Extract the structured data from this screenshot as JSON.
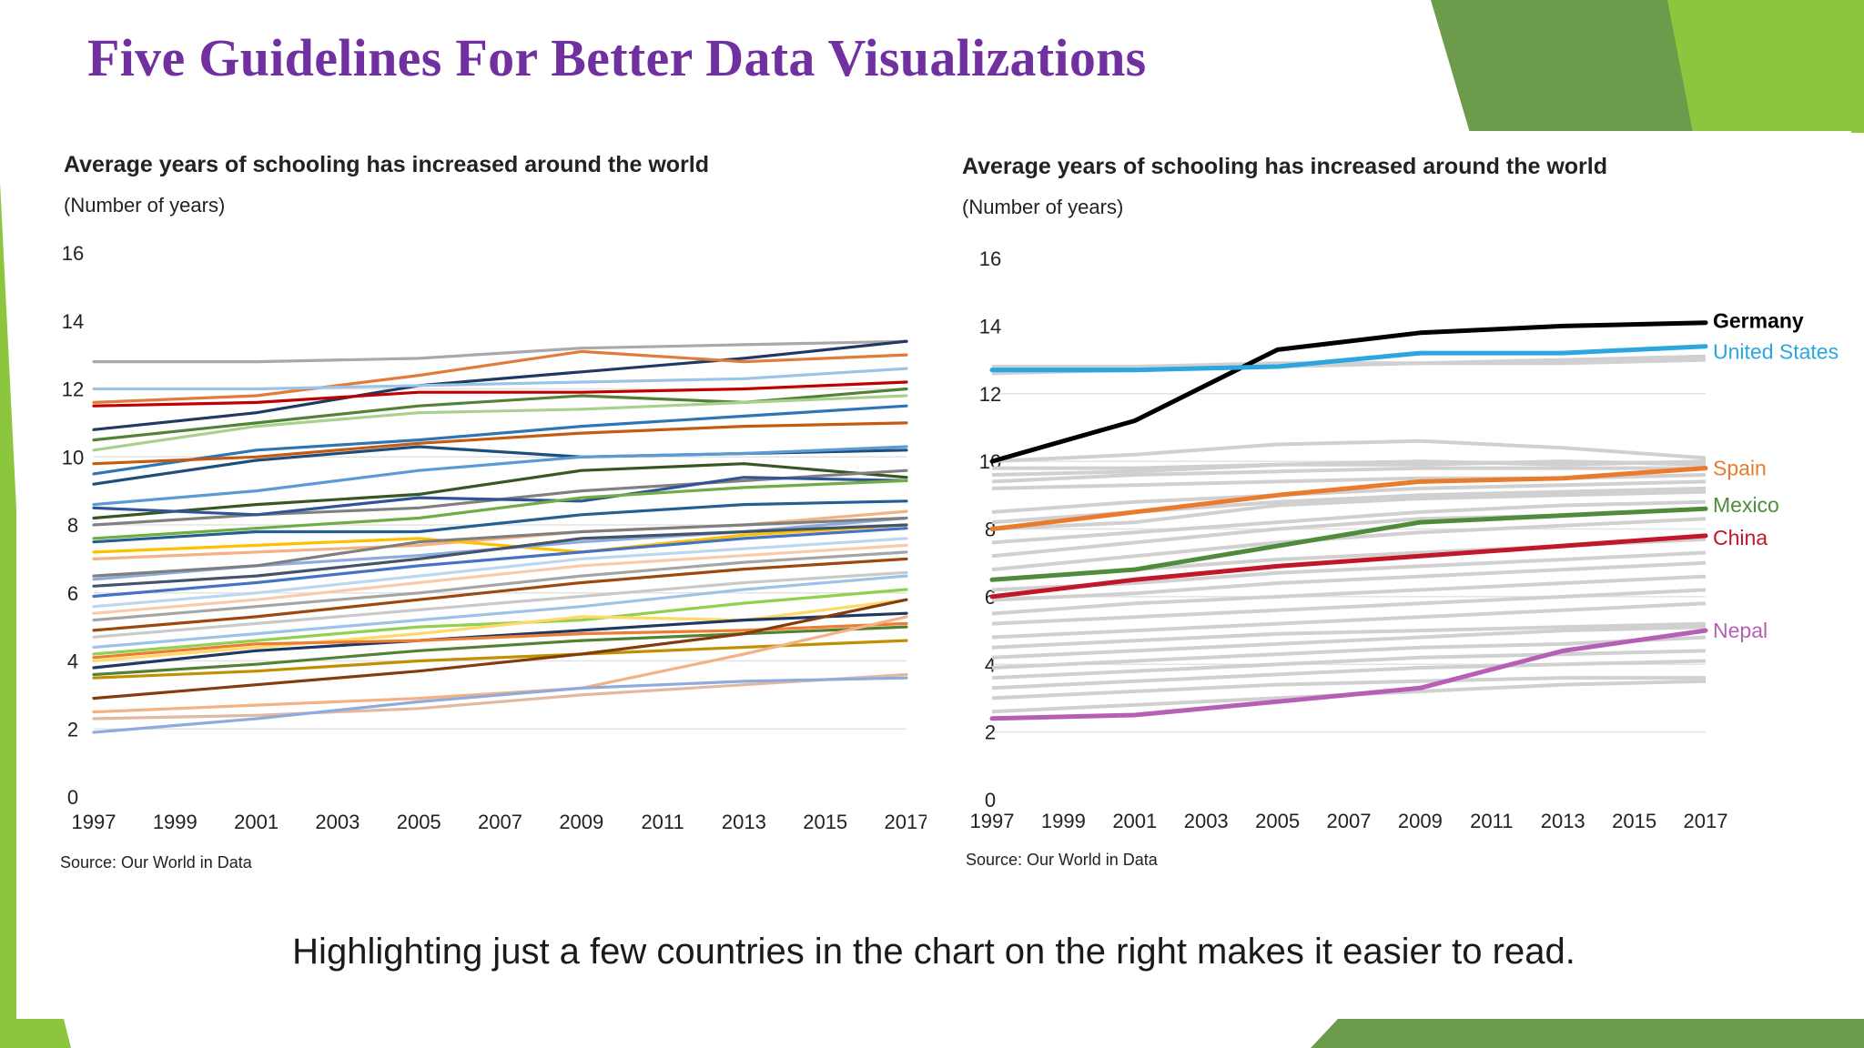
{
  "slide": {
    "title": "Five Guidelines For Better Data Visualizations",
    "caption": "Highlighting just a few countries in the chart on the right makes it easier to read.",
    "accent_colors": {
      "title": "#7030a0",
      "green_light": "#8cc63f",
      "green_dark": "#6b9b4b"
    }
  },
  "chart_data": [
    {
      "type": "line",
      "title": "Average years of schooling has increased around the world",
      "subtitle": "(Number of years)",
      "source": "Source: Our World in Data",
      "x_ticks": [
        "1997",
        "1999",
        "2001",
        "2003",
        "2005",
        "2007",
        "2009",
        "2011",
        "2013",
        "2015",
        "2017"
      ],
      "y_ticks": [
        "0",
        "2",
        "4",
        "6",
        "8",
        "10",
        "12",
        "14",
        "16"
      ],
      "ylim": [
        0,
        16
      ],
      "xlim": [
        1997,
        2017
      ],
      "x": [
        1997,
        2001,
        2005,
        2009,
        2013,
        2017
      ],
      "series": [
        {
          "name": "",
          "color": "#a9a9a9",
          "values": [
            12.8,
            12.8,
            12.9,
            13.2,
            13.3,
            13.4
          ]
        },
        {
          "name": "",
          "color": "#1f3864",
          "values": [
            10.8,
            11.3,
            12.1,
            12.5,
            12.9,
            13.4
          ]
        },
        {
          "name": "",
          "color": "#e07b39",
          "values": [
            11.6,
            11.8,
            12.4,
            13.1,
            12.8,
            13.0
          ]
        },
        {
          "name": "",
          "color": "#9dc3e6",
          "values": [
            12.0,
            12.0,
            12.1,
            12.2,
            12.3,
            12.6
          ]
        },
        {
          "name": "",
          "color": "#548235",
          "values": [
            10.5,
            11.0,
            11.5,
            11.8,
            11.6,
            12.0
          ]
        },
        {
          "name": "",
          "color": "#c00000",
          "values": [
            11.5,
            11.6,
            11.9,
            11.9,
            12.0,
            12.2
          ]
        },
        {
          "name": "",
          "color": "#a9d18e",
          "values": [
            10.2,
            10.9,
            11.3,
            11.4,
            11.6,
            11.8
          ]
        },
        {
          "name": "",
          "color": "#2e75b6",
          "values": [
            9.5,
            10.2,
            10.5,
            10.9,
            11.2,
            11.5
          ]
        },
        {
          "name": "",
          "color": "#c55a11",
          "values": [
            9.8,
            10.0,
            10.4,
            10.7,
            10.9,
            11.0
          ]
        },
        {
          "name": "",
          "color": "#1f4e79",
          "values": [
            9.2,
            9.9,
            10.3,
            10.0,
            10.1,
            10.2
          ]
        },
        {
          "name": "",
          "color": "#5b9bd5",
          "values": [
            8.6,
            9.0,
            9.6,
            10.0,
            10.1,
            10.3
          ]
        },
        {
          "name": "",
          "color": "#375623",
          "values": [
            8.2,
            8.6,
            8.9,
            9.6,
            9.8,
            9.4
          ]
        },
        {
          "name": "",
          "color": "#808080",
          "values": [
            8.0,
            8.3,
            8.5,
            9.0,
            9.3,
            9.6
          ]
        },
        {
          "name": "",
          "color": "#2f5597",
          "values": [
            8.5,
            8.3,
            8.8,
            8.7,
            9.4,
            9.3
          ]
        },
        {
          "name": "",
          "color": "#70ad47",
          "values": [
            7.6,
            7.9,
            8.2,
            8.8,
            9.1,
            9.3
          ]
        },
        {
          "name": "",
          "color": "#255e91",
          "values": [
            7.5,
            7.8,
            7.8,
            8.3,
            8.6,
            8.7
          ]
        },
        {
          "name": "",
          "color": "#f4b183",
          "values": [
            7.0,
            7.2,
            7.4,
            7.8,
            8.0,
            8.4
          ]
        },
        {
          "name": "",
          "color": "#ffc000",
          "values": [
            7.2,
            7.4,
            7.6,
            7.2,
            7.7,
            8.0
          ]
        },
        {
          "name": "",
          "color": "#8faadc",
          "values": [
            6.4,
            6.8,
            7.1,
            7.5,
            7.8,
            8.2
          ]
        },
        {
          "name": "",
          "color": "#7f7f7f",
          "values": [
            6.5,
            6.8,
            7.5,
            7.8,
            8.0,
            8.2
          ]
        },
        {
          "name": "",
          "color": "#44546a",
          "values": [
            6.2,
            6.5,
            7.0,
            7.6,
            7.8,
            8.0
          ]
        },
        {
          "name": "",
          "color": "#4472c4",
          "values": [
            5.9,
            6.3,
            6.8,
            7.2,
            7.6,
            7.9
          ]
        },
        {
          "name": "",
          "color": "#bdd7ee",
          "values": [
            5.6,
            6.0,
            6.5,
            7.0,
            7.3,
            7.6
          ]
        },
        {
          "name": "",
          "color": "#f8cbad",
          "values": [
            5.4,
            5.8,
            6.3,
            6.8,
            7.1,
            7.4
          ]
        },
        {
          "name": "",
          "color": "#a5a5a5",
          "values": [
            5.2,
            5.6,
            6.0,
            6.5,
            6.9,
            7.2
          ]
        },
        {
          "name": "",
          "color": "#9e480e",
          "values": [
            4.9,
            5.3,
            5.8,
            6.3,
            6.7,
            7.0
          ]
        },
        {
          "name": "",
          "color": "#c9c9c9",
          "values": [
            4.7,
            5.1,
            5.5,
            5.9,
            6.3,
            6.6
          ]
        },
        {
          "name": "",
          "color": "#9dc3e6",
          "values": [
            4.4,
            4.8,
            5.2,
            5.6,
            6.1,
            6.5
          ]
        },
        {
          "name": "",
          "color": "#92d050",
          "values": [
            4.2,
            4.6,
            5.0,
            5.2,
            5.7,
            6.1
          ]
        },
        {
          "name": "",
          "color": "#ffd966",
          "values": [
            4.0,
            4.4,
            4.8,
            5.3,
            5.2,
            5.8
          ]
        },
        {
          "name": "",
          "color": "#1f3864",
          "values": [
            3.8,
            4.3,
            4.6,
            4.9,
            5.2,
            5.4
          ]
        },
        {
          "name": "",
          "color": "#ed7d31",
          "values": [
            4.1,
            4.5,
            4.6,
            4.8,
            4.9,
            5.1
          ]
        },
        {
          "name": "",
          "color": "#548235",
          "values": [
            3.6,
            3.9,
            4.3,
            4.6,
            4.8,
            5.0
          ]
        },
        {
          "name": "",
          "color": "#bf9000",
          "values": [
            3.5,
            3.7,
            4.0,
            4.2,
            4.4,
            4.6
          ]
        },
        {
          "name": "",
          "color": "#843c0c",
          "values": [
            2.9,
            3.3,
            3.7,
            4.2,
            4.8,
            5.8
          ]
        },
        {
          "name": "",
          "color": "#f4b183",
          "values": [
            2.5,
            2.7,
            2.9,
            3.2,
            4.2,
            5.3
          ]
        },
        {
          "name": "",
          "color": "#e2b9a0",
          "values": [
            2.3,
            2.4,
            2.6,
            3.0,
            3.3,
            3.6
          ]
        },
        {
          "name": "",
          "color": "#8faadc",
          "values": [
            1.9,
            2.3,
            2.8,
            3.2,
            3.4,
            3.5
          ]
        }
      ]
    },
    {
      "type": "line",
      "title": "Average years of schooling has increased around the world",
      "subtitle": "(Number of years)",
      "source": "Source: Our World in Data",
      "x_ticks": [
        "1997",
        "1999",
        "2001",
        "2003",
        "2005",
        "2007",
        "2009",
        "2011",
        "2013",
        "2015",
        "2017"
      ],
      "y_ticks": [
        "0",
        "2",
        "4",
        "6",
        "8",
        "10",
        "12",
        "14",
        "16"
      ],
      "ylim": [
        0,
        16
      ],
      "xlim": [
        1997,
        2017
      ],
      "x": [
        1997,
        2001,
        2005,
        2009,
        2013,
        2017
      ],
      "background_color": "#d0d0d0",
      "background_series": [
        [
          12.8,
          12.8,
          12.9,
          12.9,
          12.9,
          13.0
        ],
        [
          12.6,
          12.7,
          12.8,
          12.9,
          13.0,
          13.1
        ],
        [
          10.0,
          10.2,
          10.5,
          10.6,
          10.4,
          10.1
        ],
        [
          9.8,
          9.8,
          9.9,
          10.0,
          9.9,
          10.0
        ],
        [
          9.6,
          9.7,
          9.9,
          9.9,
          10.0,
          9.9
        ],
        [
          9.4,
          9.6,
          9.7,
          9.8,
          9.8,
          9.8
        ],
        [
          9.2,
          9.3,
          9.4,
          9.5,
          9.5,
          9.6
        ],
        [
          8.5,
          8.8,
          9.0,
          9.2,
          9.3,
          9.4
        ],
        [
          8.2,
          8.5,
          8.8,
          9.0,
          9.1,
          9.2
        ],
        [
          8.0,
          8.2,
          8.7,
          8.9,
          9.0,
          9.1
        ],
        [
          7.6,
          7.9,
          8.2,
          8.5,
          8.7,
          8.8
        ],
        [
          7.2,
          7.6,
          8.0,
          8.3,
          8.4,
          8.6
        ],
        [
          6.8,
          7.2,
          7.6,
          7.9,
          8.1,
          8.3
        ],
        [
          6.5,
          6.8,
          7.1,
          7.3,
          7.5,
          7.7
        ],
        [
          6.2,
          6.4,
          6.7,
          6.9,
          7.1,
          7.3
        ],
        [
          5.9,
          6.1,
          6.4,
          6.6,
          6.8,
          7.0
        ],
        [
          5.5,
          5.8,
          6.0,
          6.2,
          6.4,
          6.6
        ],
        [
          5.2,
          5.4,
          5.6,
          5.8,
          6.0,
          6.2
        ],
        [
          4.8,
          5.0,
          5.2,
          5.4,
          5.6,
          5.8
        ],
        [
          4.5,
          4.7,
          4.9,
          5.0,
          5.1,
          5.2
        ],
        [
          4.2,
          4.4,
          4.6,
          4.8,
          5.0,
          5.1
        ],
        [
          3.9,
          4.1,
          4.3,
          4.5,
          4.6,
          4.8
        ],
        [
          3.6,
          3.8,
          4.0,
          4.2,
          4.3,
          4.4
        ],
        [
          3.3,
          3.5,
          3.7,
          3.9,
          4.0,
          4.1
        ],
        [
          3.0,
          3.2,
          3.4,
          3.5,
          3.6,
          3.6
        ],
        [
          2.6,
          2.8,
          3.0,
          3.2,
          3.4,
          3.5
        ]
      ],
      "series": [
        {
          "name": "Germany",
          "color": "#000000",
          "values": [
            10.0,
            11.2,
            13.3,
            13.8,
            14.0,
            14.1
          ]
        },
        {
          "name": "United States",
          "color": "#2ba6de",
          "values": [
            12.7,
            12.7,
            12.8,
            13.2,
            13.2,
            13.4
          ]
        },
        {
          "name": "Spain",
          "color": "#e97b2c",
          "values": [
            8.0,
            8.5,
            9.0,
            9.4,
            9.5,
            9.8
          ]
        },
        {
          "name": "Mexico",
          "color": "#4f8c3a",
          "values": [
            6.5,
            6.8,
            7.5,
            8.2,
            8.4,
            8.6
          ]
        },
        {
          "name": "China",
          "color": "#c0172a",
          "values": [
            6.0,
            6.5,
            6.9,
            7.2,
            7.5,
            7.8
          ]
        },
        {
          "name": "Nepal",
          "color": "#b65fb5",
          "values": [
            2.4,
            2.5,
            2.9,
            3.3,
            4.4,
            5.0
          ]
        }
      ]
    }
  ]
}
